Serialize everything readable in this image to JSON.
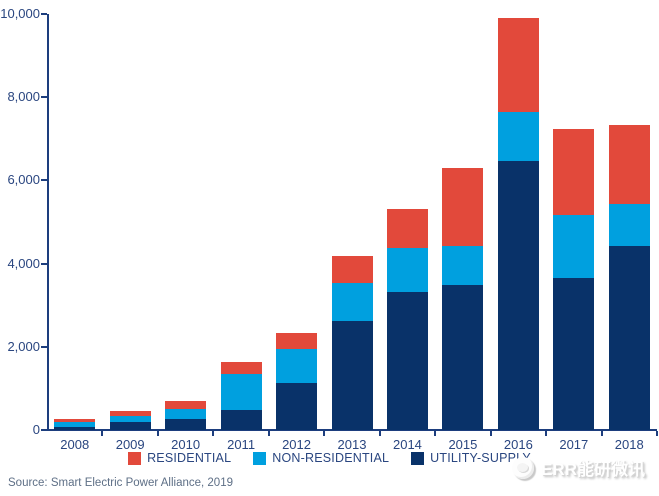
{
  "chart_data": {
    "type": "bar",
    "stacked": true,
    "title": "",
    "xlabel": "",
    "ylabel": "",
    "ylim": [
      0,
      10000
    ],
    "grid": false,
    "legend_position": "bottom",
    "categories": [
      "2008",
      "2009",
      "2010",
      "2011",
      "2012",
      "2013",
      "2014",
      "2015",
      "2016",
      "2017",
      "2018"
    ],
    "ytick_labels": [
      "0",
      "2,000",
      "4,000",
      "6,000",
      "8,000",
      "10,000"
    ],
    "ytick_values": [
      0,
      2000,
      4000,
      6000,
      8000,
      10000
    ],
    "series": [
      {
        "name": "UTILITY-SUPPLY",
        "color": "#093269",
        "values": [
          80,
          185,
          255,
          480,
          1140,
          2620,
          3325,
          3490,
          6465,
          3645,
          4425
        ]
      },
      {
        "name": "NON-RESIDENTIAL",
        "color": "#00a0df",
        "values": [
          105,
          150,
          240,
          865,
          810,
          905,
          1045,
          945,
          1170,
          1520,
          1010
        ]
      },
      {
        "name": "RESIDENTIAL",
        "color": "#e2493b",
        "values": [
          70,
          120,
          210,
          295,
          390,
          665,
          945,
          1860,
          2265,
          2070,
          1905
        ]
      }
    ],
    "legend_order": [
      "RESIDENTIAL",
      "NON-RESIDENTIAL",
      "UTILITY-SUPPLY"
    ]
  },
  "axis": {
    "line_color": "#1d3e7e",
    "label_color": "#2a4680"
  },
  "source": {
    "text": "Source: Smart Electric Power Alliance, 2019"
  },
  "watermark": {
    "text": "ERR能研微讯"
  }
}
